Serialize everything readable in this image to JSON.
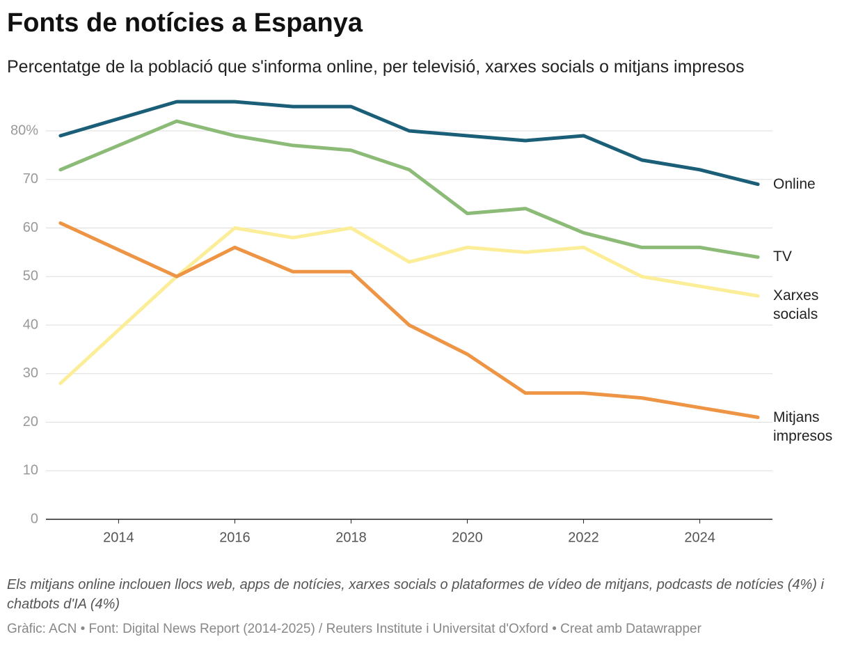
{
  "chart_data": {
    "type": "line",
    "title": "Fonts de notícies a Espanya",
    "subtitle": "Percentatge de la població que s'informa online, per televisió, xarxes socials o mitjans impresos",
    "note": "Els mitjans online inclouen llocs web, apps de notícies, xarxes socials o plataformes de vídeo de mitjans, podcasts de notícies (4%) i chatbots d'IA (4%)",
    "source": "Gràfic: ACN • Font: Digital News Report (2014-2025) / Reuters Institute i Universitat d'Oxford • Creat amb Datawrapper",
    "x": [
      2013,
      2015,
      2016,
      2017,
      2018,
      2019,
      2020,
      2021,
      2022,
      2023,
      2024,
      2025
    ],
    "series": [
      {
        "name": "Online",
        "color": "#1a5e78",
        "values": [
          79,
          86,
          86,
          85,
          85,
          80,
          79,
          78,
          79,
          74,
          72,
          69
        ]
      },
      {
        "name": "TV",
        "color": "#8cbb78",
        "values": [
          72,
          82,
          79,
          77,
          76,
          72,
          63,
          64,
          59,
          56,
          56,
          54
        ]
      },
      {
        "name": "Xarxes socials",
        "color": "#fcee99",
        "values": [
          28,
          50,
          60,
          58,
          60,
          53,
          56,
          55,
          56,
          50,
          48,
          46
        ]
      },
      {
        "name": "Mitjans impresos",
        "color": "#ee9445",
        "values": [
          61,
          50,
          56,
          51,
          51,
          40,
          34,
          26,
          26,
          25,
          23,
          21
        ]
      }
    ],
    "xlim": [
      2012.75,
      2025.25
    ],
    "xticks": [
      2014,
      2016,
      2018,
      2020,
      2022,
      2024
    ],
    "ylim": [
      0,
      88
    ],
    "yticks": [
      0,
      10,
      20,
      30,
      40,
      50,
      60,
      70,
      {
        "value": 80,
        "label": "80%"
      }
    ],
    "grid": true
  }
}
